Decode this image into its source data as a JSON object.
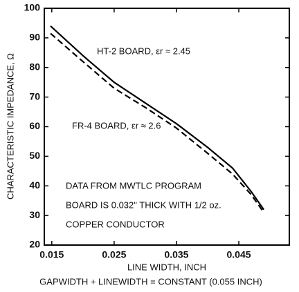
{
  "chart_data": {
    "type": "line",
    "x_label": "LINE WIDTH, INCH",
    "subtitle": "GAPWIDTH + LINEWIDTH = CONSTANT (0.055 INCH)",
    "y_label": "CHARACTERISTIC IMPEDANCE, Ω",
    "x": [
      0.0148,
      0.02,
      0.025,
      0.03,
      0.035,
      0.04,
      0.044,
      0.047,
      0.049
    ],
    "series": [
      {
        "name": "HT-2 BOARD, εr ≈ 2.45",
        "color": "#000000",
        "dash": false,
        "values": [
          94,
          84,
          75,
          68,
          61,
          53,
          46,
          38,
          32
        ]
      },
      {
        "name": "FR-4 BOARD, εr ≈ 2.6",
        "color": "#000000",
        "dash": true,
        "values": [
          91.5,
          82,
          73,
          66.5,
          59.5,
          51,
          44,
          37,
          31
        ]
      }
    ],
    "annotations": [
      "DATA FROM MWTLC PROGRAM",
      "BOARD IS 0.032\" THICK WITH 1/2 oz.",
      "COPPER CONDUCTOR"
    ],
    "xlim": [
      0.0138,
      0.0531
    ],
    "xticks": [
      0.015,
      0.025,
      0.035,
      0.045
    ],
    "ylim": [
      20,
      100
    ],
    "yticks": [
      20,
      30,
      40,
      50,
      60,
      70,
      80,
      90,
      100
    ],
    "grid": false
  }
}
